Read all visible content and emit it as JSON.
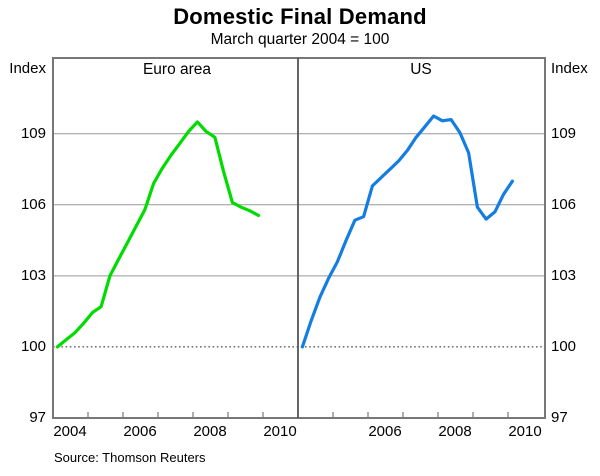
{
  "chart_data": {
    "type": "line",
    "title": "Domestic Final Demand",
    "subtitle": "March quarter 2004 = 100",
    "unit": "Index",
    "source": "Source: Thomson Reuters",
    "ylim": [
      97,
      112.2
    ],
    "yticks": [
      97,
      100,
      103,
      106,
      109
    ],
    "baseline": 100,
    "xlim_years": [
      2004,
      2011
    ],
    "grid": "horizontal-only",
    "legend_position": "none",
    "panels": [
      {
        "label": "Euro area",
        "color": "#00DC00",
        "xticks": [
          "2004",
          "2006",
          "2008",
          "2010"
        ],
        "quarters": [
          "2004Q1",
          "2004Q2",
          "2004Q3",
          "2004Q4",
          "2005Q1",
          "2005Q2",
          "2005Q3",
          "2005Q4",
          "2006Q1",
          "2006Q2",
          "2006Q3",
          "2006Q4",
          "2007Q1",
          "2007Q2",
          "2007Q3",
          "2007Q4",
          "2008Q1",
          "2008Q2",
          "2008Q3",
          "2008Q4",
          "2009Q1",
          "2009Q2",
          "2009Q3",
          "2009Q4"
        ],
        "values": [
          100.0,
          100.3,
          100.6,
          101.0,
          101.45,
          101.7,
          103.0,
          103.7,
          104.4,
          105.1,
          105.8,
          106.9,
          107.55,
          108.1,
          108.6,
          109.1,
          109.5,
          109.1,
          108.85,
          107.4,
          106.1,
          105.9,
          105.75,
          105.55
        ]
      },
      {
        "label": "US",
        "color": "#147DE1",
        "xticks": [
          "2006",
          "2008",
          "2010"
        ],
        "quarters": [
          "2004Q1",
          "2004Q2",
          "2004Q3",
          "2004Q4",
          "2005Q1",
          "2005Q2",
          "2005Q3",
          "2005Q4",
          "2006Q1",
          "2006Q2",
          "2006Q3",
          "2006Q4",
          "2007Q1",
          "2007Q2",
          "2007Q3",
          "2007Q4",
          "2008Q1",
          "2008Q2",
          "2008Q3",
          "2008Q4",
          "2009Q1",
          "2009Q2",
          "2009Q3",
          "2009Q4",
          "2010Q1"
        ],
        "values": [
          100.0,
          101.1,
          102.1,
          102.9,
          103.6,
          104.5,
          105.35,
          105.5,
          106.8,
          107.15,
          107.5,
          107.85,
          108.3,
          108.85,
          109.3,
          109.75,
          109.55,
          109.6,
          109.05,
          108.2,
          105.9,
          105.4,
          105.7,
          106.45,
          107.0
        ]
      }
    ]
  }
}
